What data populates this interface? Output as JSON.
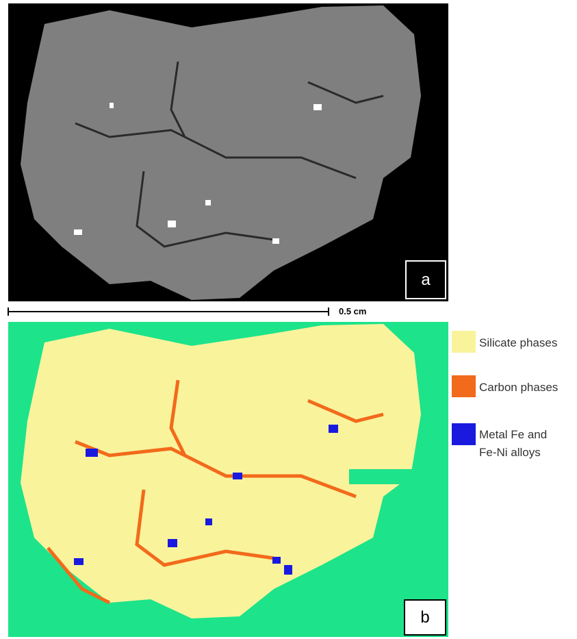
{
  "panels": [
    {
      "label": "a"
    },
    {
      "label": "b"
    }
  ],
  "scale_bar": {
    "label": "0.5 cm"
  },
  "legend": [
    {
      "label": "Silicate phases",
      "color": "#f9f39c"
    },
    {
      "label": "Carbon phases",
      "color": "#f26a1b"
    },
    {
      "label": "Metal Fe and Fe-Ni alloys",
      "color": "#1a1adf"
    }
  ]
}
